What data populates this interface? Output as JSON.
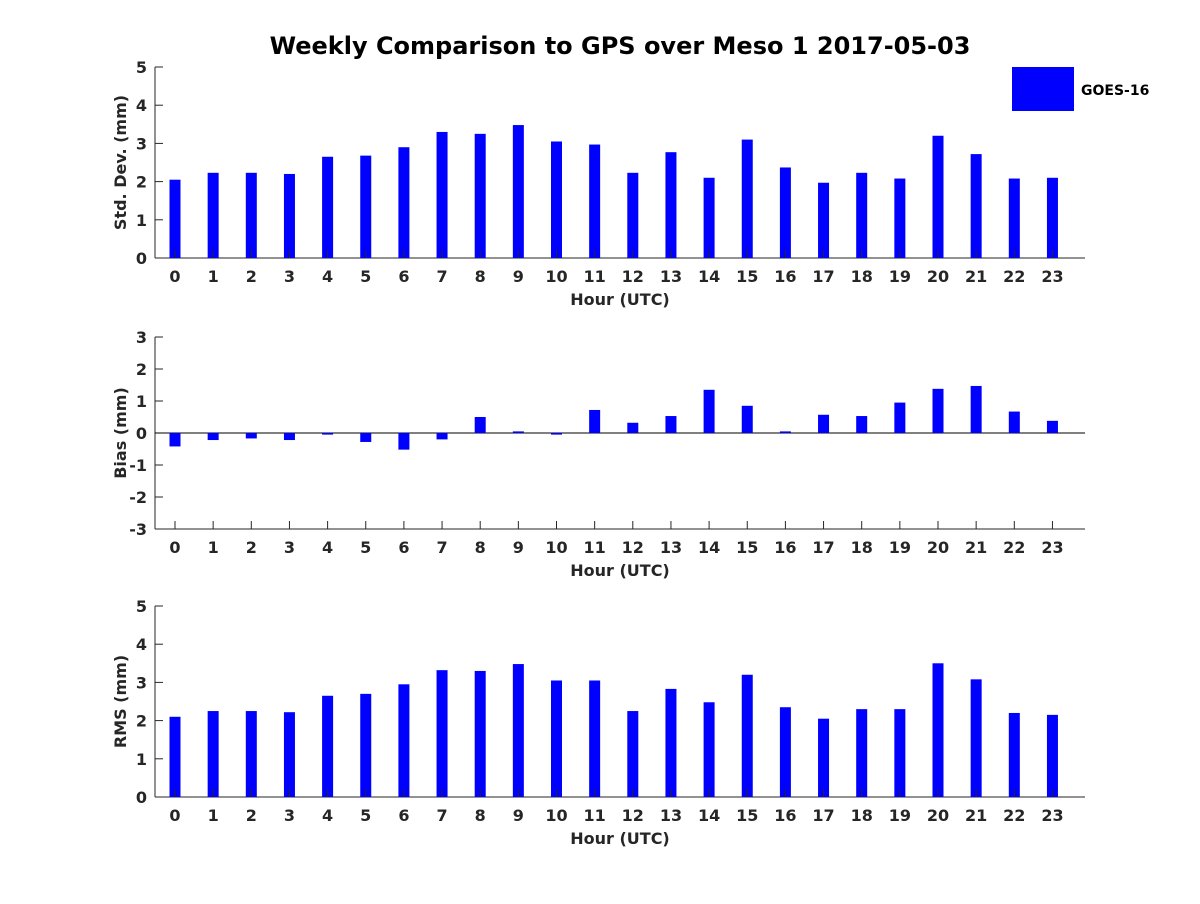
{
  "title": "Weekly Comparison to GPS over Meso 1 2017-05-03",
  "legend": {
    "label": "GOES-16",
    "color": "#0000ff"
  },
  "colors": {
    "bar": "#0000ff",
    "axis": "#262626"
  },
  "chart_data": [
    {
      "type": "bar",
      "xlabel": "Hour (UTC)",
      "ylabel": "Std. Dev. (mm)",
      "categories": [
        "0",
        "1",
        "2",
        "3",
        "4",
        "5",
        "6",
        "7",
        "8",
        "9",
        "10",
        "11",
        "12",
        "13",
        "14",
        "15",
        "16",
        "17",
        "18",
        "19",
        "20",
        "21",
        "22",
        "23"
      ],
      "yticks": [
        "0",
        "1",
        "2",
        "3",
        "4",
        "5"
      ],
      "ylim": [
        0,
        5
      ],
      "series": [
        {
          "name": "GOES-16",
          "values": [
            2.05,
            2.23,
            2.23,
            2.2,
            2.65,
            2.68,
            2.9,
            3.3,
            3.25,
            3.48,
            3.05,
            2.97,
            2.23,
            2.77,
            2.1,
            3.1,
            2.37,
            1.97,
            2.23,
            2.08,
            3.2,
            2.72,
            2.08,
            2.1
          ]
        }
      ]
    },
    {
      "type": "bar",
      "xlabel": "Hour (UTC)",
      "ylabel": "Bias (mm)",
      "categories": [
        "0",
        "1",
        "2",
        "3",
        "4",
        "5",
        "6",
        "7",
        "8",
        "9",
        "10",
        "11",
        "12",
        "13",
        "14",
        "15",
        "16",
        "17",
        "18",
        "19",
        "20",
        "21",
        "22",
        "23"
      ],
      "yticks": [
        "-3",
        "-2",
        "-1",
        "0",
        "1",
        "2",
        "3"
      ],
      "ylim": [
        -3,
        3
      ],
      "series": [
        {
          "name": "GOES-16",
          "values": [
            -0.42,
            -0.22,
            -0.17,
            -0.22,
            -0.05,
            -0.28,
            -0.52,
            -0.2,
            0.5,
            0.05,
            -0.05,
            0.72,
            0.32,
            0.53,
            1.35,
            0.85,
            0.05,
            0.57,
            0.53,
            0.95,
            1.38,
            1.47,
            0.67,
            0.38
          ]
        }
      ]
    },
    {
      "type": "bar",
      "xlabel": "Hour (UTC)",
      "ylabel": "RMS (mm)",
      "categories": [
        "0",
        "1",
        "2",
        "3",
        "4",
        "5",
        "6",
        "7",
        "8",
        "9",
        "10",
        "11",
        "12",
        "13",
        "14",
        "15",
        "16",
        "17",
        "18",
        "19",
        "20",
        "21",
        "22",
        "23"
      ],
      "yticks": [
        "0",
        "1",
        "2",
        "3",
        "4",
        "5"
      ],
      "ylim": [
        0,
        5
      ],
      "series": [
        {
          "name": "GOES-16",
          "values": [
            2.1,
            2.25,
            2.25,
            2.22,
            2.65,
            2.7,
            2.95,
            3.32,
            3.3,
            3.48,
            3.05,
            3.05,
            2.25,
            2.83,
            2.48,
            3.2,
            2.35,
            2.05,
            2.3,
            2.3,
            3.5,
            3.08,
            2.2,
            2.15
          ]
        }
      ]
    }
  ]
}
